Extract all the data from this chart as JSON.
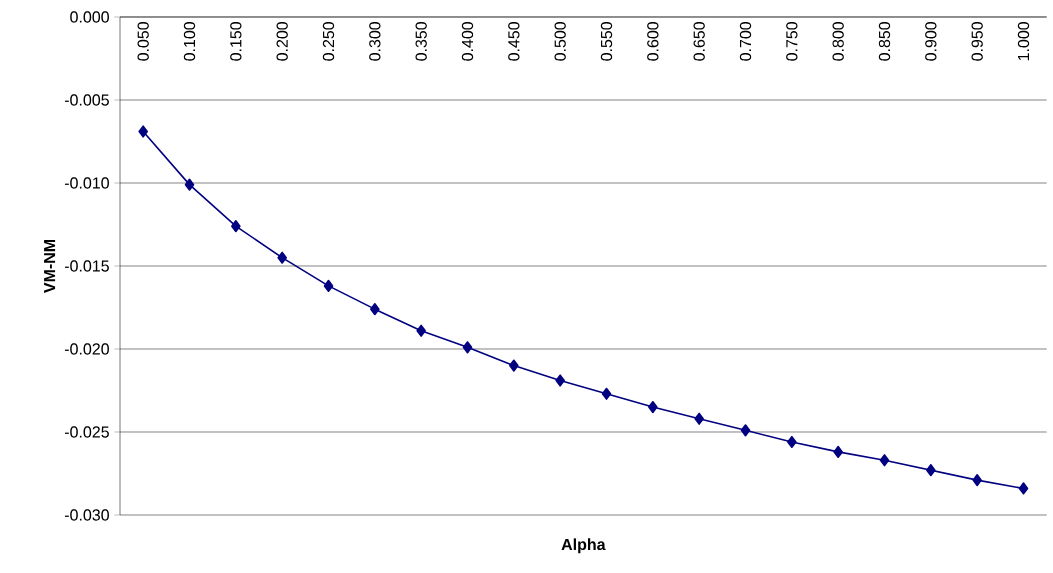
{
  "chart_data": {
    "type": "line",
    "xlabel": "Alpha",
    "ylabel": "VM-NM",
    "categories": [
      "0.050",
      "0.100",
      "0.150",
      "0.200",
      "0.250",
      "0.300",
      "0.350",
      "0.400",
      "0.450",
      "0.500",
      "0.550",
      "0.600",
      "0.650",
      "0.700",
      "0.750",
      "0.800",
      "0.850",
      "0.900",
      "0.950",
      "1.000"
    ],
    "values": [
      -0.0069,
      -0.0101,
      -0.0126,
      -0.0145,
      -0.0162,
      -0.0176,
      -0.0189,
      -0.0199,
      -0.021,
      -0.0219,
      -0.0227,
      -0.0235,
      -0.0242,
      -0.0249,
      -0.0256,
      -0.0262,
      -0.0267,
      -0.0273,
      -0.0279,
      -0.0284
    ],
    "color": "#000080",
    "marker": "diamond",
    "line_style": "solid",
    "ylim": [
      -0.03,
      0
    ],
    "yticks": [
      {
        "value": 0,
        "label": "0.000"
      },
      {
        "value": -0.005,
        "label": "-0.005"
      },
      {
        "value": -0.01,
        "label": "-0.010"
      },
      {
        "value": -0.015,
        "label": "-0.015"
      },
      {
        "value": -0.02,
        "label": "-0.020"
      },
      {
        "value": -0.025,
        "label": "-0.025"
      },
      {
        "value": -0.03,
        "label": "-0.030"
      }
    ],
    "grid": "y"
  }
}
